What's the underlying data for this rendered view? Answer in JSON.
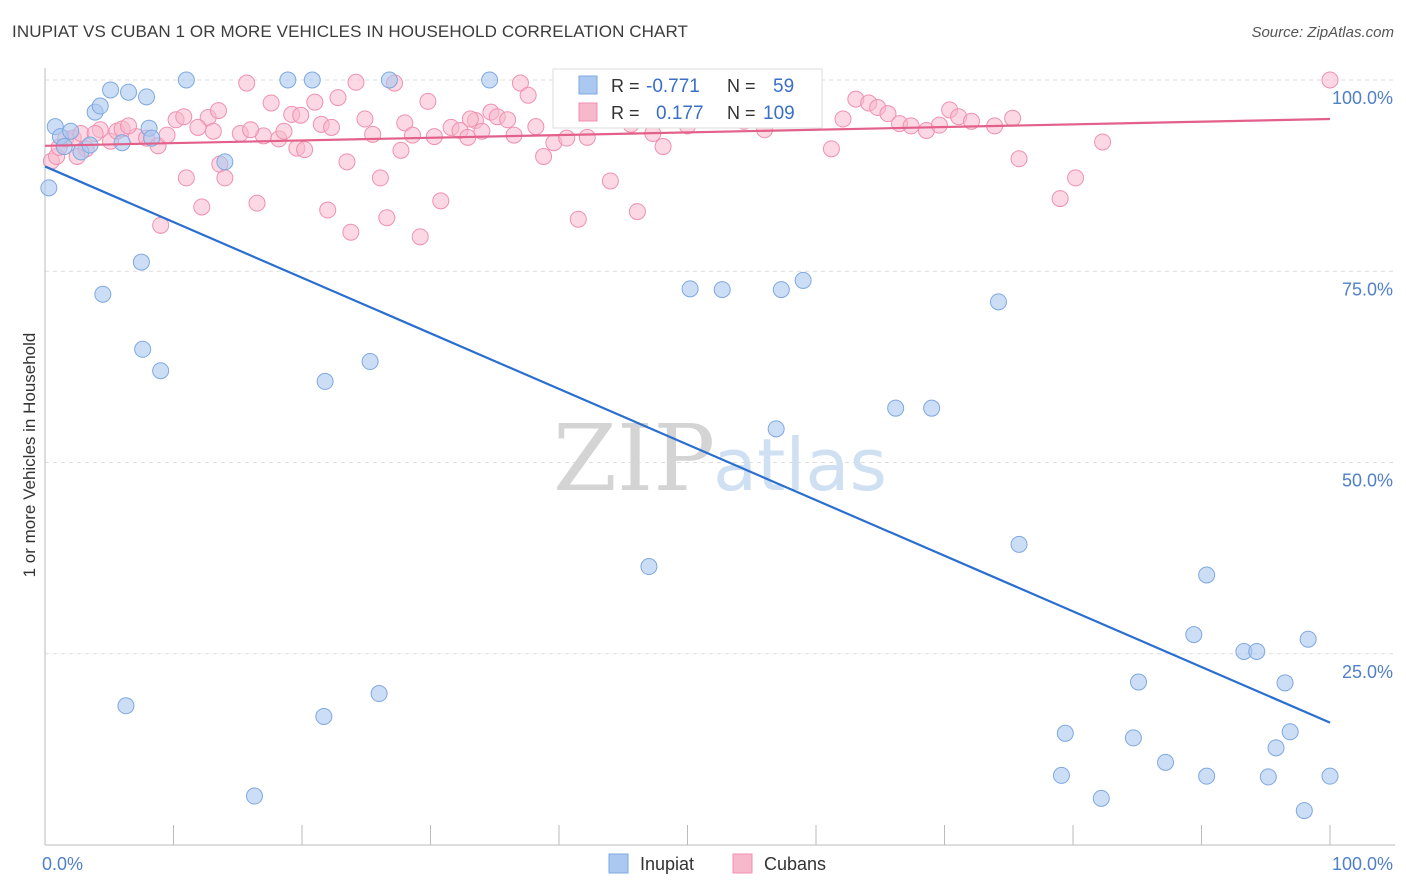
{
  "header": {
    "title": "INUPIAT VS CUBAN 1 OR MORE VEHICLES IN HOUSEHOLD CORRELATION CHART",
    "source": "Source: ZipAtlas.com"
  },
  "colors": {
    "inupiat_fill": "#aac8f0",
    "inupiat_stroke": "#7ea8e0",
    "inupiat_line": "#2a6fd0",
    "cubans_fill": "#f7b8cc",
    "cubans_stroke": "#f090b0",
    "cubans_line": "#e2608a",
    "grid": "#dddddd",
    "tick_label": "#5080c8"
  },
  "watermark": {
    "zip": "ZIP",
    "atlas": "atlas"
  },
  "legend_box": {
    "rows": [
      {
        "r_label": "R =",
        "r_value": "-0.771",
        "n_label": "N =",
        "n_value": "59"
      },
      {
        "r_label": "R =",
        "r_value": "0.177",
        "n_label": "N =",
        "n_value": "109"
      }
    ]
  },
  "bottom_legend": {
    "inupiat": "Inupiat",
    "cubans": "Cubans"
  },
  "chart_data": {
    "type": "scatter",
    "title": "INUPIAT VS CUBAN 1 OR MORE VEHICLES IN HOUSEHOLD CORRELATION CHART",
    "xlabel": "",
    "ylabel": "1 or more Vehicles in Household",
    "xlim": [
      0,
      100
    ],
    "ylim": [
      0,
      100
    ],
    "x_tick_labels": {
      "left": "0.0%",
      "right": "100.0%"
    },
    "y_tick_labels": [
      {
        "value": 100,
        "label": "100.0%"
      },
      {
        "value": 75,
        "label": "75.0%"
      },
      {
        "value": 50,
        "label": "50.0%"
      },
      {
        "value": 25,
        "label": "25.0%"
      }
    ],
    "series": [
      {
        "name": "Inupiat",
        "r": -0.771,
        "n": 59,
        "trend": {
          "x": [
            0,
            100
          ],
          "y": [
            88.7,
            16
          ]
        },
        "points": [
          [
            0.3,
            85.9
          ],
          [
            0.8,
            93.9
          ],
          [
            1.2,
            92.6
          ],
          [
            1.5,
            91.3
          ],
          [
            2.0,
            93.3
          ],
          [
            2.8,
            90.6
          ],
          [
            3.5,
            91.5
          ],
          [
            3.9,
            95.8
          ],
          [
            4.3,
            96.6
          ],
          [
            5.1,
            98.7
          ],
          [
            6.0,
            91.8
          ],
          [
            6.5,
            98.4
          ],
          [
            7.9,
            97.8
          ],
          [
            8.1,
            93.7
          ],
          [
            8.3,
            92.4
          ],
          [
            11.0,
            100.0
          ],
          [
            14.0,
            89.3
          ],
          [
            18.9,
            100.0
          ],
          [
            20.8,
            100.0
          ],
          [
            26.8,
            100.0
          ],
          [
            34.6,
            100.0
          ],
          [
            7.5,
            76.2
          ],
          [
            4.5,
            72.0
          ],
          [
            7.6,
            64.8
          ],
          [
            9.0,
            62.0
          ],
          [
            21.8,
            60.6
          ],
          [
            25.3,
            63.2
          ],
          [
            50.2,
            72.7
          ],
          [
            52.7,
            72.6
          ],
          [
            57.3,
            72.6
          ],
          [
            59.0,
            73.8
          ],
          [
            74.2,
            71.0
          ],
          [
            56.9,
            54.4
          ],
          [
            66.2,
            57.1
          ],
          [
            69.0,
            57.1
          ],
          [
            47.0,
            36.4
          ],
          [
            75.8,
            39.3
          ],
          [
            90.4,
            35.3
          ],
          [
            89.4,
            27.5
          ],
          [
            93.3,
            25.3
          ],
          [
            94.3,
            25.3
          ],
          [
            98.3,
            26.9
          ],
          [
            96.5,
            21.2
          ],
          [
            85.1,
            21.3
          ],
          [
            6.3,
            18.2
          ],
          [
            21.7,
            16.8
          ],
          [
            26.0,
            19.8
          ],
          [
            79.4,
            14.6
          ],
          [
            84.7,
            14.0
          ],
          [
            95.8,
            12.7
          ],
          [
            96.9,
            14.8
          ],
          [
            16.3,
            6.4
          ],
          [
            79.1,
            9.1
          ],
          [
            87.2,
            10.8
          ],
          [
            90.4,
            9.0
          ],
          [
            95.2,
            8.9
          ],
          [
            98.0,
            4.5
          ],
          [
            100.0,
            9.0
          ],
          [
            82.2,
            6.1
          ]
        ]
      },
      {
        "name": "Cubans",
        "r": 0.177,
        "n": 109,
        "trend": {
          "x": [
            0,
            100
          ],
          "y": [
            91.4,
            94.9
          ]
        },
        "points": [
          [
            0.5,
            89.4
          ],
          [
            0.9,
            90.0
          ],
          [
            1.1,
            91.2
          ],
          [
            1.6,
            92.3
          ],
          [
            2.2,
            92.4
          ],
          [
            2.8,
            93.0
          ],
          [
            3.2,
            91.0
          ],
          [
            4.3,
            93.5
          ],
          [
            5.1,
            92.0
          ],
          [
            5.6,
            93.3
          ],
          [
            6.0,
            93.6
          ],
          [
            7.1,
            92.6
          ],
          [
            7.9,
            92.4
          ],
          [
            8.8,
            91.4
          ],
          [
            9.5,
            92.8
          ],
          [
            10.2,
            94.8
          ],
          [
            10.8,
            95.2
          ],
          [
            11.0,
            87.2
          ],
          [
            12.2,
            83.4
          ],
          [
            12.7,
            95.1
          ],
          [
            13.1,
            93.3
          ],
          [
            13.6,
            89.0
          ],
          [
            14.0,
            87.2
          ],
          [
            15.2,
            93.0
          ],
          [
            15.7,
            99.6
          ],
          [
            16.5,
            83.9
          ],
          [
            17.0,
            92.7
          ],
          [
            17.6,
            97.0
          ],
          [
            18.2,
            92.3
          ],
          [
            18.6,
            93.3
          ],
          [
            19.2,
            95.5
          ],
          [
            19.6,
            91.1
          ],
          [
            20.2,
            90.9
          ],
          [
            21.0,
            97.1
          ],
          [
            21.5,
            94.2
          ],
          [
            22.0,
            83.0
          ],
          [
            22.8,
            97.7
          ],
          [
            23.5,
            89.3
          ],
          [
            23.8,
            80.1
          ],
          [
            24.2,
            99.7
          ],
          [
            24.9,
            94.9
          ],
          [
            25.5,
            92.9
          ],
          [
            26.1,
            87.2
          ],
          [
            26.6,
            82.0
          ],
          [
            27.2,
            99.6
          ],
          [
            28.0,
            94.4
          ],
          [
            28.6,
            92.8
          ],
          [
            29.2,
            79.5
          ],
          [
            29.8,
            97.2
          ],
          [
            30.3,
            92.6
          ],
          [
            30.8,
            84.2
          ],
          [
            31.6,
            93.8
          ],
          [
            32.3,
            93.4
          ],
          [
            32.9,
            92.5
          ],
          [
            33.5,
            94.7
          ],
          [
            34.0,
            93.3
          ],
          [
            34.7,
            95.8
          ],
          [
            35.2,
            95.2
          ],
          [
            36.0,
            94.8
          ],
          [
            36.5,
            92.8
          ],
          [
            37.0,
            99.6
          ],
          [
            37.6,
            98.0
          ],
          [
            38.2,
            93.9
          ],
          [
            39.6,
            91.8
          ],
          [
            40.6,
            92.4
          ],
          [
            41.5,
            81.8
          ],
          [
            44.0,
            86.8
          ],
          [
            46.1,
            82.8
          ],
          [
            48.1,
            91.3
          ],
          [
            52.6,
            98.8
          ],
          [
            56.0,
            93.5
          ],
          [
            58.1,
            94.8
          ],
          [
            61.2,
            91.0
          ],
          [
            62.1,
            94.9
          ],
          [
            63.1,
            97.5
          ],
          [
            64.1,
            97.0
          ],
          [
            64.8,
            96.4
          ],
          [
            65.6,
            95.6
          ],
          [
            66.5,
            94.3
          ],
          [
            67.4,
            94.0
          ],
          [
            68.6,
            93.4
          ],
          [
            69.6,
            94.1
          ],
          [
            70.4,
            96.1
          ],
          [
            71.1,
            95.2
          ],
          [
            72.1,
            94.6
          ],
          [
            73.9,
            94.0
          ],
          [
            75.3,
            95.0
          ],
          [
            75.8,
            89.7
          ],
          [
            79.0,
            84.5
          ],
          [
            80.2,
            87.2
          ],
          [
            82.3,
            91.9
          ],
          [
            100.0,
            100.0
          ],
          [
            45.6,
            94.2
          ],
          [
            50.0,
            94.0
          ],
          [
            47.3,
            93.0
          ],
          [
            42.2,
            92.5
          ],
          [
            38.8,
            90.0
          ],
          [
            27.7,
            90.8
          ],
          [
            16.0,
            93.5
          ],
          [
            9.0,
            81.0
          ],
          [
            13.5,
            96.0
          ],
          [
            6.5,
            94.0
          ],
          [
            3.9,
            93.0
          ],
          [
            2.5,
            90.0
          ],
          [
            11.9,
            93.8
          ],
          [
            19.9,
            95.4
          ],
          [
            54.4,
            94.6
          ],
          [
            22.3,
            93.8
          ],
          [
            33.1,
            94.9
          ]
        ]
      }
    ]
  }
}
